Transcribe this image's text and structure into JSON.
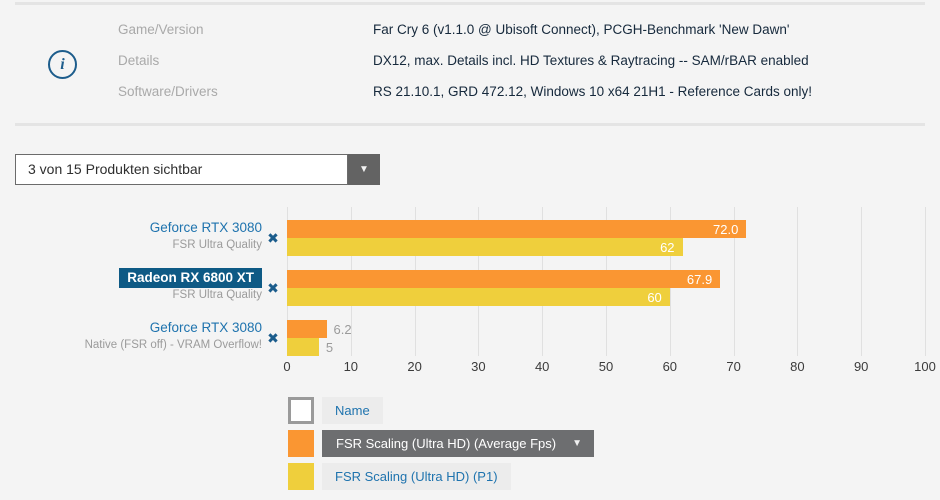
{
  "icons": {
    "info": "i",
    "close": "✖",
    "dropdown_arrow": "▼"
  },
  "colors": {
    "orange": "#FA9632",
    "yellow": "#EFCF3C",
    "highlight_bg": "#0E5A85",
    "link_blue": "#1E73AE",
    "grid": "#E0E0E0",
    "legend_selected_bg": "#6D6E70",
    "legend_item_bg": "#ECECEC",
    "page_bg": "#F4F4F4"
  },
  "header": {
    "rows": [
      {
        "label": "Game/Version",
        "value": "Far Cry 6 (v1.1.0 @ Ubisoft Connect), PCGH-Benchmark 'New Dawn'"
      },
      {
        "label": "Details",
        "value": "DX12, max. Details incl. HD Textures & Raytracing -- SAM/rBAR enabled"
      },
      {
        "label": "Software/Drivers",
        "value": "RS 21.10.1, GRD 472.12, Windows 10 x64 21H1 - Reference Cards only!"
      }
    ]
  },
  "filter": {
    "selected": "3 von 15 Produkten sichtbar"
  },
  "chart_data": {
    "type": "bar",
    "orientation": "horizontal",
    "xlim": [
      0,
      100
    ],
    "ticks": [
      0,
      10,
      20,
      30,
      40,
      50,
      60,
      70,
      80,
      90,
      100
    ],
    "grid": true,
    "unit": "Fps",
    "categories": [
      {
        "name": "Geforce RTX 3080",
        "subtitle": "FSR Ultra Quality",
        "highlighted": false
      },
      {
        "name": "Radeon RX 6800 XT",
        "subtitle": "FSR Ultra Quality",
        "highlighted": true
      },
      {
        "name": "Geforce RTX 3080",
        "subtitle": "Native (FSR off) - VRAM Overflow!",
        "highlighted": false
      }
    ],
    "series": [
      {
        "name": "FSR Scaling (Ultra HD) (Average Fps)",
        "color": "#FA9632",
        "values": [
          72.0,
          67.9,
          6.2
        ],
        "value_labels": [
          "72.0",
          "67.9",
          "6.2"
        ]
      },
      {
        "name": "FSR Scaling (Ultra HD) (P1)",
        "color": "#EFCF3C",
        "values": [
          62,
          60,
          5
        ],
        "value_labels": [
          "62",
          "60",
          "5"
        ]
      }
    ],
    "legend_position": "bottom"
  },
  "legend": {
    "name_label": "Name",
    "items": [
      {
        "label": "FSR Scaling (Ultra HD) (Average Fps)",
        "selected": true,
        "color": "#FA9632"
      },
      {
        "label": "FSR Scaling (Ultra HD) (P1)",
        "selected": false,
        "color": "#EFCF3C"
      }
    ]
  }
}
